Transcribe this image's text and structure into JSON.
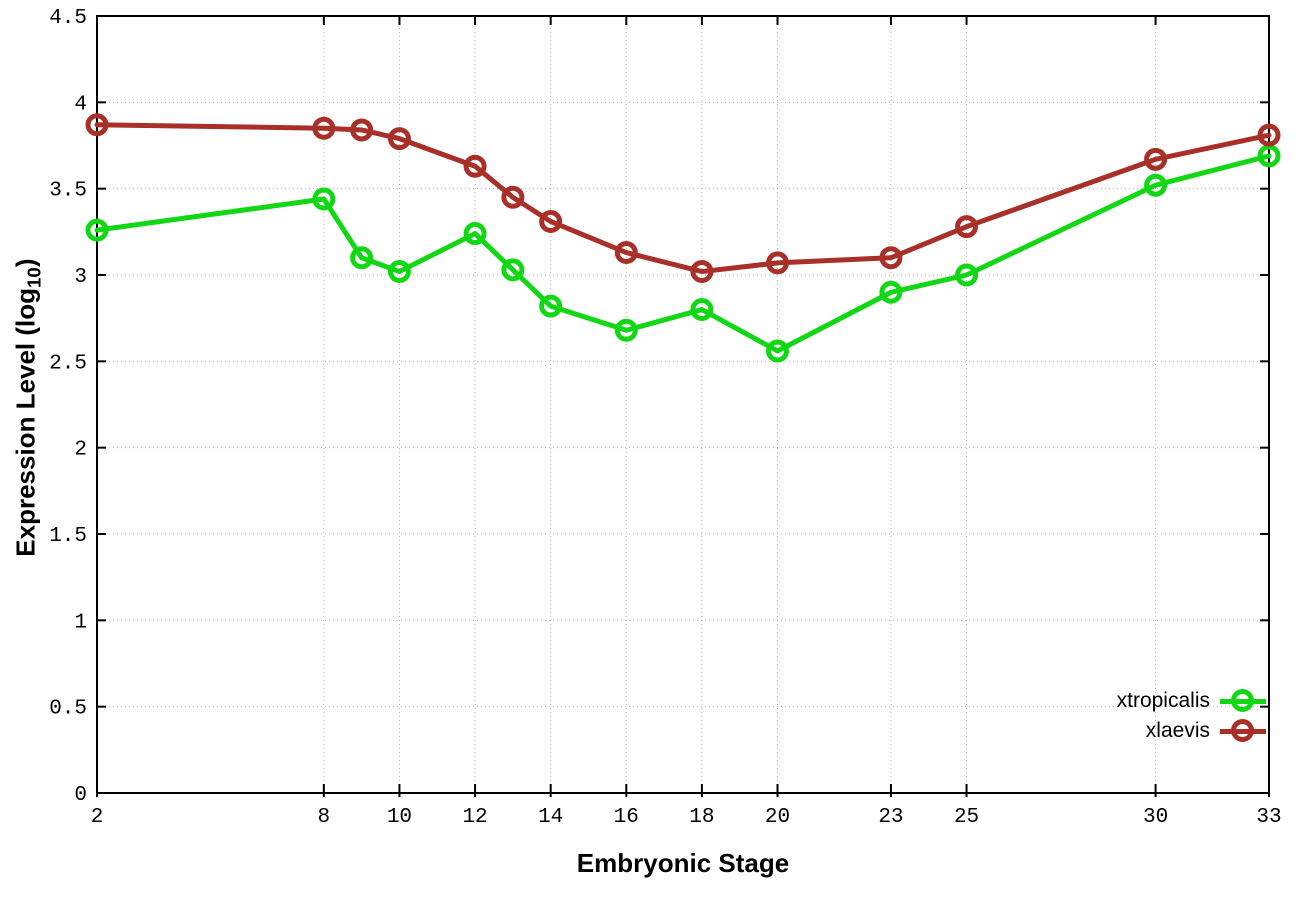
{
  "chart_data": {
    "type": "line",
    "title": "",
    "xlabel": "Embryonic Stage",
    "ylabel_main": "Expression Level (log",
    "ylabel_sub": "10",
    "ylabel_end": ")",
    "x": [
      2,
      8,
      9,
      10,
      12,
      13,
      14,
      16,
      18,
      20,
      23,
      25,
      30,
      33
    ],
    "series": [
      {
        "name": "xtropicalis",
        "color": "#11d714",
        "values": [
          3.26,
          3.44,
          3.1,
          3.02,
          3.24,
          3.03,
          2.82,
          2.68,
          2.8,
          2.56,
          2.9,
          3.0,
          3.52,
          3.69
        ]
      },
      {
        "name": "xlaevis",
        "color": "#a83028",
        "values": [
          3.87,
          3.85,
          3.84,
          3.79,
          3.63,
          3.45,
          3.31,
          3.13,
          3.02,
          3.07,
          3.1,
          3.28,
          3.67,
          3.81
        ]
      }
    ],
    "xlim": [
      2,
      33
    ],
    "ylim": [
      0,
      4.5
    ],
    "xticks": {
      "values": [
        2,
        8,
        10,
        12,
        14,
        16,
        18,
        20,
        23,
        25,
        30,
        33
      ],
      "labels": [
        "2",
        "8",
        "10",
        "12",
        "14",
        "16",
        "18",
        "20",
        "23",
        "25",
        "30",
        "33"
      ]
    },
    "yticks": {
      "values": [
        0,
        0.5,
        1,
        1.5,
        2,
        2.5,
        3,
        3.5,
        4,
        4.5
      ],
      "labels": [
        "0",
        "0.5",
        "1",
        "1.5",
        "2",
        "2.5",
        "3",
        "3.5",
        "4",
        "4.5"
      ]
    },
    "grid": true,
    "legend_position": "inside-bottom-right",
    "colors": {
      "background": "#ffffff",
      "axis_border": "#000000",
      "grid": "#b3b3b3",
      "tick_text": "#000000"
    }
  }
}
